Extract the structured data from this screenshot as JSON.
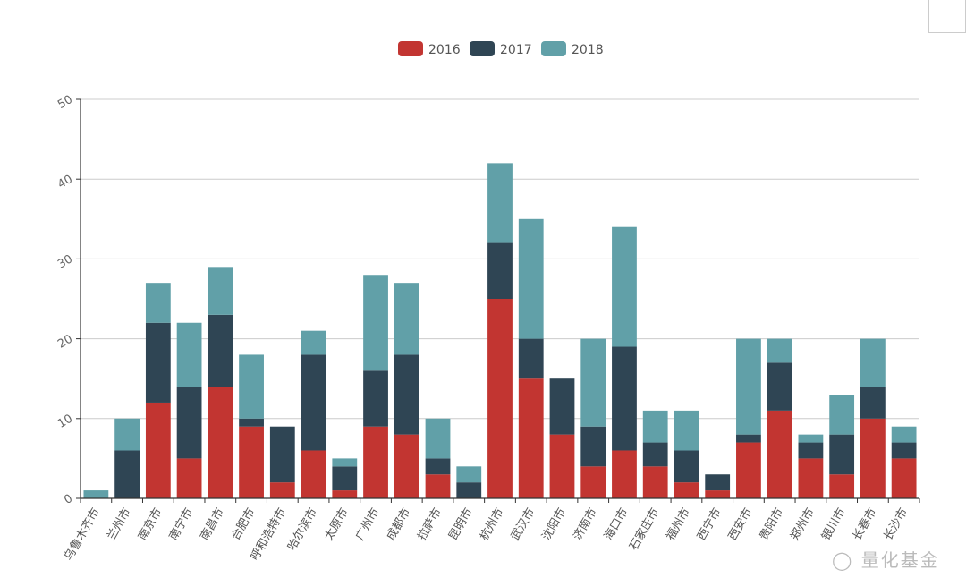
{
  "chart_data": {
    "type": "bar",
    "stacked": true,
    "title": "",
    "xlabel": "",
    "ylabel": "",
    "ylim": [
      0,
      50
    ],
    "yticks": [
      0,
      10,
      20,
      30,
      40,
      50
    ],
    "grid": true,
    "legend_position": "top-center",
    "categories": [
      "乌鲁木齐市",
      "兰州市",
      "南京市",
      "南宁市",
      "南昌市",
      "合肥市",
      "呼和浩特市",
      "哈尔滨市",
      "太原市",
      "广州市",
      "成都市",
      "拉萨市",
      "昆明市",
      "杭州市",
      "武汉市",
      "沈阳市",
      "济南市",
      "海口市",
      "石家庄市",
      "福州市",
      "西宁市",
      "西安市",
      "贵阳市",
      "郑州市",
      "银川市",
      "长春市",
      "长沙市"
    ],
    "series": [
      {
        "name": "2016",
        "color": "#c23531",
        "values": [
          0,
          0,
          12,
          5,
          14,
          9,
          2,
          6,
          1,
          9,
          8,
          3,
          0,
          25,
          15,
          8,
          4,
          6,
          4,
          2,
          1,
          7,
          11,
          5,
          3,
          10,
          5
        ]
      },
      {
        "name": "2017",
        "color": "#2f4554",
        "values": [
          0,
          6,
          10,
          9,
          9,
          1,
          7,
          12,
          3,
          7,
          10,
          2,
          2,
          7,
          5,
          7,
          5,
          13,
          3,
          4,
          2,
          1,
          6,
          2,
          5,
          4,
          2
        ]
      },
      {
        "name": "2018",
        "color": "#61a0a8",
        "values": [
          1,
          4,
          5,
          8,
          6,
          8,
          0,
          3,
          1,
          12,
          9,
          5,
          2,
          10,
          15,
          0,
          11,
          15,
          4,
          5,
          0,
          12,
          3,
          1,
          5,
          6,
          2
        ]
      }
    ]
  },
  "watermark": "量化基金"
}
